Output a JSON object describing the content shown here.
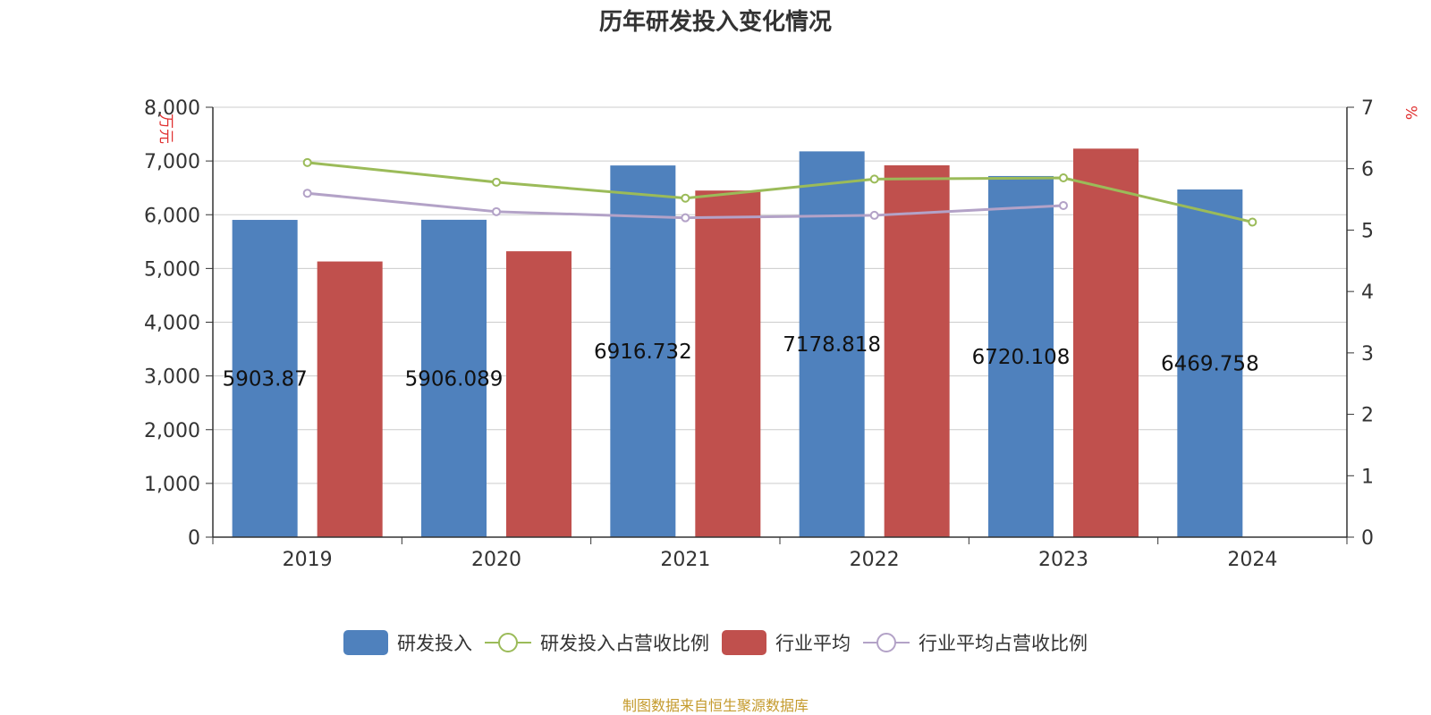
{
  "chart_data": {
    "type": "bar",
    "title": "历年研发投入变化情况",
    "categories": [
      "2019",
      "2020",
      "2021",
      "2022",
      "2023",
      "2024"
    ],
    "y_left": {
      "label": "万元",
      "ticks": [
        "0",
        "1,000",
        "2,000",
        "3,000",
        "4,000",
        "5,000",
        "6,000",
        "7,000",
        "8,000"
      ],
      "ylim": [
        0,
        8000
      ]
    },
    "y_right": {
      "label": "%",
      "ticks": [
        "0",
        "1",
        "2",
        "3",
        "4",
        "5",
        "6",
        "7"
      ],
      "ylim": [
        0,
        7
      ]
    },
    "series": [
      {
        "name": "研发投入",
        "kind": "bar",
        "axis": "left",
        "color": "#4f81bd",
        "values": [
          5903.87,
          5906.089,
          6916.732,
          7178.818,
          6720.108,
          6469.758
        ],
        "labels": [
          "5903.87",
          "5906.089",
          "6916.732",
          "7178.818",
          "6720.108",
          "6469.758"
        ]
      },
      {
        "name": "行业平均",
        "kind": "bar",
        "axis": "left",
        "color": "#c0504d",
        "values": [
          5130,
          5320,
          6450,
          6920,
          7230,
          null
        ]
      },
      {
        "name": "研发投入占营收比例",
        "kind": "line",
        "axis": "right",
        "color": "#9bbb59",
        "values": [
          6.1,
          5.78,
          5.52,
          5.83,
          5.85,
          5.13
        ]
      },
      {
        "name": "行业平均占营收比例",
        "kind": "line",
        "axis": "right",
        "color": "#b3a2c7",
        "values": [
          5.6,
          5.3,
          5.2,
          5.24,
          5.4,
          null
        ]
      }
    ],
    "grid": true,
    "legend_position": "bottom"
  },
  "source_note": "制图数据来自恒生聚源数据库"
}
